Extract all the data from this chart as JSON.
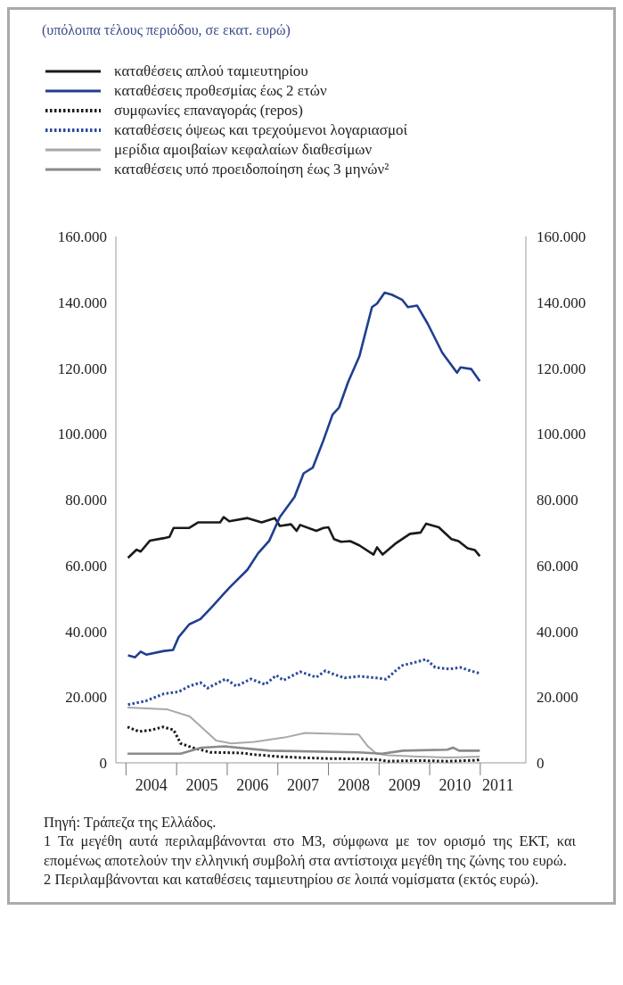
{
  "chart_data": {
    "type": "line",
    "title": "(υπόλοιπα τέλους περιόδου, σε εκατ. ευρώ)",
    "xlim": [
      2003.8,
      2011.9
    ],
    "xticks": [
      {
        "value": 2004,
        "label": null
      },
      {
        "value": 2005,
        "label": null
      },
      {
        "value": 2006,
        "label": null
      },
      {
        "value": 2007,
        "label": null
      },
      {
        "value": 2008,
        "label": null
      },
      {
        "value": 2009,
        "label": null
      },
      {
        "value": 2010,
        "label": null
      },
      {
        "value": 2011,
        "label": null
      },
      {
        "value": 2004.5,
        "label": "2004"
      },
      {
        "value": 2005.5,
        "label": "2005"
      },
      {
        "value": 2006.5,
        "label": "2006"
      },
      {
        "value": 2007.5,
        "label": "2007"
      },
      {
        "value": 2008.5,
        "label": "2008"
      },
      {
        "value": 2009.5,
        "label": "2009"
      },
      {
        "value": 2010.5,
        "label": "2010"
      },
      {
        "value": 2011.35,
        "label": "2011"
      }
    ],
    "ylim": [
      0,
      160000
    ],
    "yticks": [
      0,
      {
        "value": 20000,
        "label": "20.000"
      },
      {
        "value": 40000,
        "label": "40.000"
      },
      {
        "value": 60000,
        "label": "60.000"
      },
      {
        "value": 80000,
        "label": "80.000"
      },
      {
        "value": 100000,
        "label": "100.000"
      },
      {
        "value": 120000,
        "label": "120.000"
      },
      {
        "value": 140000,
        "label": "140.000"
      },
      {
        "value": 160000,
        "label": "160.000"
      }
    ],
    "y2lim": [
      0,
      160000
    ],
    "y2ticks": [
      0,
      {
        "value": 20000,
        "label": "20.000"
      },
      {
        "value": 40000,
        "label": "40.000"
      },
      {
        "value": 60000,
        "label": "60.000"
      },
      {
        "value": 80000,
        "label": "80.000"
      },
      {
        "value": 100000,
        "label": "100.000"
      },
      {
        "value": 120000,
        "label": "120.000"
      },
      {
        "value": 140000,
        "label": "140.000"
      },
      {
        "value": 160000,
        "label": "160.000"
      }
    ],
    "legend": "top left",
    "grid": false,
    "series": [
      {
        "name": "καταθέσεις απλού ταμιευτηρίου",
        "color": "#1a1a1a",
        "line_style": "solid",
        "x": [
          2004.04,
          2004.21,
          2004.29,
          2004.47,
          2004.75,
          2004.86,
          2004.94,
          2005.25,
          2005.43,
          2005.86,
          2005.93,
          2006.04,
          2006.4,
          2006.68,
          2006.94,
          2007.04,
          2007.26,
          2007.37,
          2007.44,
          2007.76,
          2007.9,
          2008.0,
          2008.11,
          2008.25,
          2008.43,
          2008.61,
          2008.89,
          2008.96,
          2009.07,
          2009.32,
          2009.61,
          2009.82,
          2009.93,
          2010.04,
          2010.18,
          2010.43,
          2010.57,
          2010.75,
          2010.89,
          2010.99
        ],
        "values": [
          62300,
          64800,
          64200,
          67500,
          68300,
          68700,
          71400,
          71400,
          73100,
          73100,
          74700,
          73400,
          74400,
          73100,
          74400,
          72000,
          72500,
          70500,
          72300,
          70500,
          71400,
          71600,
          68000,
          67200,
          67400,
          66100,
          63300,
          65500,
          63300,
          66600,
          69600,
          70000,
          72700,
          72200,
          71600,
          68000,
          67400,
          65200,
          64700,
          62800
        ]
      },
      {
        "name": "καταθέσεις προθεσμίας έως 2 ετών",
        "color": "#1f3f8f",
        "line_style": "solid",
        "x": [
          2004.04,
          2004.18,
          2004.29,
          2004.4,
          2004.75,
          2004.93,
          2005.04,
          2005.25,
          2005.47,
          2005.68,
          2006.04,
          2006.4,
          2006.61,
          2006.83,
          2007.04,
          2007.33,
          2007.51,
          2007.69,
          2007.9,
          2008.08,
          2008.21,
          2008.39,
          2008.61,
          2008.86,
          2008.96,
          2009.11,
          2009.25,
          2009.46,
          2009.57,
          2009.75,
          2009.96,
          2010.25,
          2010.54,
          2010.61,
          2010.82,
          2010.99
        ],
        "values": [
          32700,
          32100,
          33800,
          32900,
          34000,
          34300,
          38200,
          42100,
          43700,
          47100,
          53200,
          58700,
          63700,
          67500,
          74700,
          80800,
          88000,
          89700,
          98000,
          105800,
          108000,
          115800,
          123500,
          138500,
          139600,
          142900,
          142300,
          140700,
          138500,
          139000,
          133500,
          124600,
          118600,
          120200,
          119700,
          116000
        ]
      },
      {
        "name": "συμφωνίες επαναγοράς (repos)",
        "color": "#1a1a1a",
        "line_style": "dotted",
        "x": [
          2004.03,
          2004.26,
          2004.5,
          2004.73,
          2004.94,
          2005.08,
          2005.32,
          2005.67,
          2006.26,
          2006.55,
          2007.01,
          2007.42,
          2008.01,
          2008.59,
          2008.94,
          2009.18,
          2009.76,
          2010.35,
          2010.93,
          2010.99
        ],
        "values": [
          10900,
          9500,
          10000,
          10900,
          10000,
          5900,
          4600,
          3200,
          3000,
          2500,
          1900,
          1600,
          1300,
          1200,
          1000,
          500,
          700,
          500,
          800,
          1000
        ]
      },
      {
        "name": "καταθέσεις όψεως και τρεχούμενοι λογαριασμοί",
        "color": "#2b4a9b",
        "line_style": "dotted",
        "x": [
          2004.04,
          2004.39,
          2004.75,
          2005.04,
          2005.25,
          2005.47,
          2005.61,
          2005.97,
          2006.18,
          2006.47,
          2006.75,
          2006.97,
          2007.11,
          2007.44,
          2007.76,
          2007.94,
          2008.11,
          2008.32,
          2008.61,
          2008.96,
          2009.14,
          2009.32,
          2009.46,
          2009.75,
          2009.93,
          2010.11,
          2010.39,
          2010.61,
          2010.82,
          2010.99
        ],
        "values": [
          17700,
          18800,
          21000,
          21600,
          23300,
          24400,
          22700,
          25500,
          23300,
          25500,
          23800,
          26600,
          25100,
          27700,
          26000,
          28000,
          26900,
          25800,
          26300,
          25800,
          25400,
          27900,
          29600,
          30700,
          31500,
          29000,
          28500,
          29000,
          27900,
          27200
        ]
      },
      {
        "name": "μερίδια αμοιβαίων κεφαλαίων διαθεσίμων",
        "color": "#a8a8a8",
        "line_style": "solid",
        "x": [
          2004.03,
          2004.8,
          2005.26,
          2005.78,
          2006.08,
          2006.54,
          2007.13,
          2007.54,
          2008.6,
          2008.78,
          2008.95,
          2009.18,
          2009.76,
          2010.35,
          2010.99
        ],
        "values": [
          16800,
          16300,
          14100,
          6800,
          5900,
          6400,
          7700,
          9100,
          8600,
          5000,
          2800,
          2300,
          1900,
          1600,
          1900
        ]
      },
      {
        "name": "καταθέσεις υπό προειδοποίηση έως 3 μηνών²",
        "color": "#8a8a8a",
        "line_style": "solid",
        "x": [
          2004.03,
          2005.08,
          2005.49,
          2005.96,
          2006.84,
          2008.59,
          2009.06,
          2009.47,
          2010.35,
          2010.46,
          2010.58,
          2010.99
        ],
        "values": [
          2800,
          2800,
          4600,
          5000,
          3700,
          3200,
          2800,
          3700,
          4000,
          4600,
          3700,
          3700
        ]
      }
    ],
    "annotations": [
      "Πηγή: Τράπεζα της Ελλάδος.",
      "1 Τα μεγέθη αυτά περιλαμβάνονται στο Μ3, σύμφωνα με τον ορισμό της ΕΚΤ, και επομένως αποτελούν την ελληνική συμβολή στα αντίστοιχα μεγέθη της ζώνης του ευρώ.",
      "2 Περιλαμβάνονται και καταθέσεις ταμιευτηρίου σε λοιπά νομίσματα (εκτός ευρώ)."
    ]
  }
}
